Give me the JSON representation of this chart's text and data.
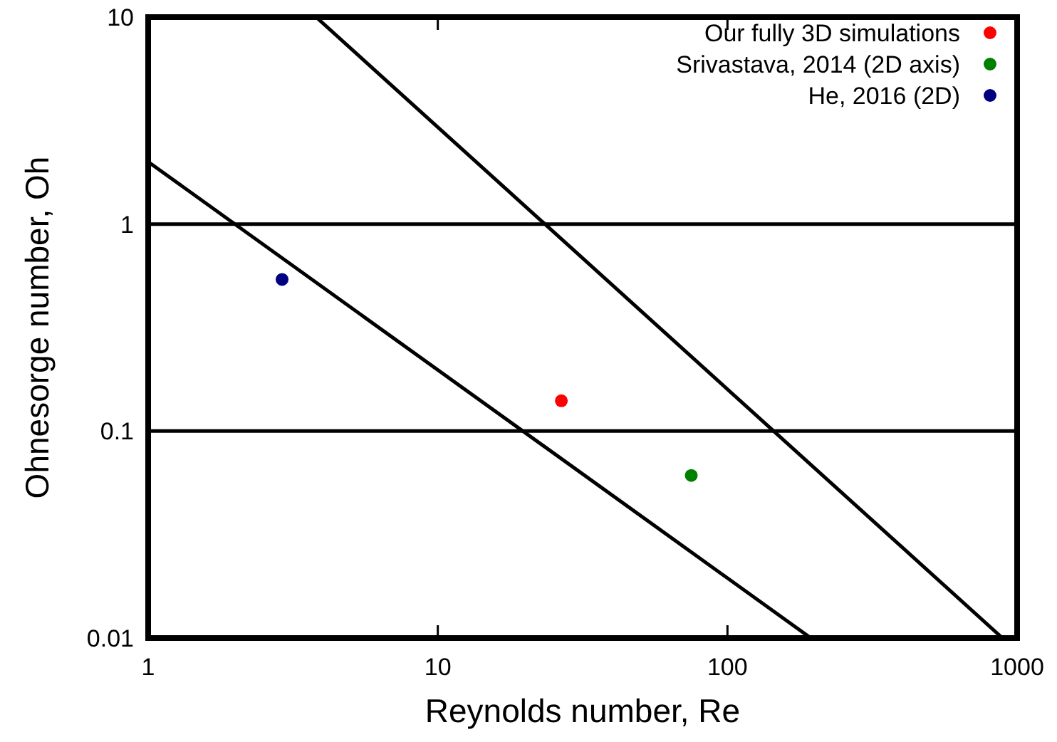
{
  "chart_data": {
    "type": "scatter",
    "xlabel": "Reynolds number, Re",
    "ylabel": "Ohnesorge number, Oh",
    "log": "xy",
    "xlim": [
      1,
      1000
    ],
    "ylim": [
      0.01,
      10
    ],
    "xticks": [
      1,
      10,
      100,
      1000
    ],
    "yticks": [
      0.01,
      0.1,
      1,
      10
    ],
    "grid": false,
    "legend": "top right",
    "marker": "circle",
    "series": [
      {
        "name": "Our fully 3D simulations",
        "color": "#ff0000",
        "x": [
          26.7
        ],
        "values": [
          0.14
        ]
      },
      {
        "name": "Srivastava, 2014 (2D axis)",
        "color": "#008000",
        "x": [
          75
        ],
        "values": [
          0.061
        ]
      },
      {
        "name": "He, 2016 (2D)",
        "color": "#000080",
        "x": [
          2.9
        ],
        "values": [
          0.54
        ]
      },
      {
        "type": "line",
        "color": "#000000",
        "x": [
          1,
          194
        ],
        "values": [
          2,
          0.01
        ],
        "line_style": "solid",
        "marker": "none"
      },
      {
        "type": "line",
        "color": "#000000",
        "x": [
          3.8,
          890
        ],
        "values": [
          10,
          0.01
        ],
        "line_style": "solid",
        "marker": "none"
      }
    ],
    "ref_lines": [
      {
        "axis": "y",
        "value": 1,
        "color": "#000000"
      },
      {
        "axis": "y",
        "value": 0.1,
        "color": "#000000"
      }
    ]
  }
}
